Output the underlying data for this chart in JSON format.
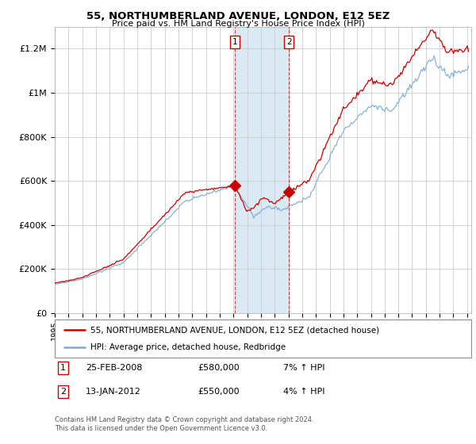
{
  "title": "55, NORTHUMBERLAND AVENUE, LONDON, E12 5EZ",
  "subtitle": "Price paid vs. HM Land Registry's House Price Index (HPI)",
  "ylim": [
    0,
    1300000
  ],
  "yticks": [
    0,
    200000,
    400000,
    600000,
    800000,
    1000000,
    1200000
  ],
  "ytick_labels": [
    "£0",
    "£200K",
    "£400K",
    "£600K",
    "£800K",
    "£1M",
    "£1.2M"
  ],
  "legend_entries": [
    "55, NORTHUMBERLAND AVENUE, LONDON, E12 5EZ (detached house)",
    "HPI: Average price, detached house, Redbridge"
  ],
  "red_color": "#cc0000",
  "blue_color": "#7aabce",
  "shade_color": "#daeaf5",
  "transaction1_x": 2008.12,
  "transaction1_y": 580000,
  "transaction1_label": "1",
  "transaction2_x": 2012.04,
  "transaction2_y": 550000,
  "transaction2_label": "2",
  "copyright": "Contains HM Land Registry data © Crown copyright and database right 2024.\nThis data is licensed under the Open Government Licence v3.0.",
  "background_color": "#ffffff",
  "grid_color": "#cccccc",
  "xlim_start": 1995,
  "xlim_end": 2025.3
}
